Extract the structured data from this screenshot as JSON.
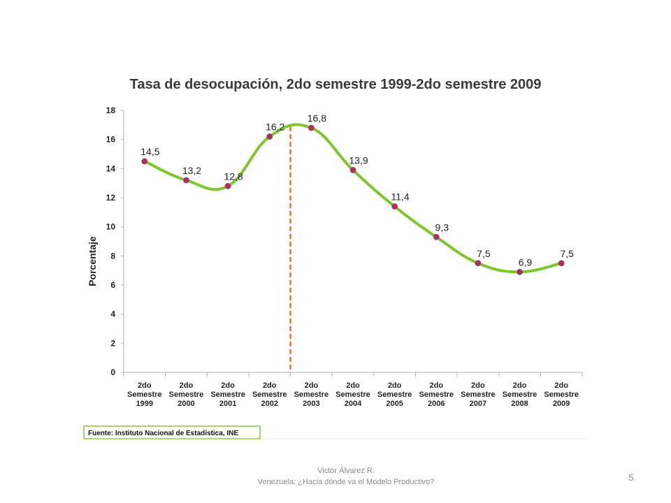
{
  "chart_data": {
    "type": "line",
    "title": "Tasa de desocupación, 2do semestre 1999-2do semestre 2009",
    "ylabel": "Porcentaje",
    "xlabel": "",
    "ylim": [
      0,
      18
    ],
    "yticks": [
      0,
      2,
      4,
      6,
      8,
      10,
      12,
      14,
      16,
      18
    ],
    "categories": [
      [
        "2do",
        "Semestre",
        "1999"
      ],
      [
        "2do",
        "Semestre",
        "2000"
      ],
      [
        "2do",
        "Semestre",
        "2001"
      ],
      [
        "2do",
        "Semestre",
        "2002"
      ],
      [
        "2do",
        "Semestre",
        "2003"
      ],
      [
        "2do",
        "Semestre",
        "2004"
      ],
      [
        "2do",
        "Semestre",
        "2005"
      ],
      [
        "2do",
        "Semestre",
        "2006"
      ],
      [
        "2do",
        "Semestre",
        "2007"
      ],
      [
        "2do",
        "Semestre",
        "2008"
      ],
      [
        "2do",
        "Semestre",
        "2009"
      ]
    ],
    "values": [
      14.5,
      13.2,
      12.8,
      16.2,
      16.8,
      13.9,
      11.4,
      9.3,
      7.5,
      6.9,
      7.5
    ],
    "data_labels": [
      "14,5",
      "13,2",
      "12,8",
      "16,2",
      "16,8",
      "13,9",
      "11,4",
      "9,3",
      "7,5",
      "6,9",
      "7,5"
    ],
    "vertical_marker_between": [
      "2002",
      "2003"
    ],
    "grid": false,
    "legend": "none",
    "source": "Fuente: Instituto Nacional de Estadística, INE",
    "colors": {
      "line": "#7dc62e",
      "marker": "#c0284a",
      "marker_stroke": "#6b5aa8",
      "vertical_marker": "#e8742a",
      "source_border": "#8cc63f"
    }
  },
  "footer": {
    "author": "Victor Álvarez R.",
    "subtitle": "Venezuela: ¿Hacia dónde va el Modelo Productivo?",
    "page_number": "5"
  }
}
